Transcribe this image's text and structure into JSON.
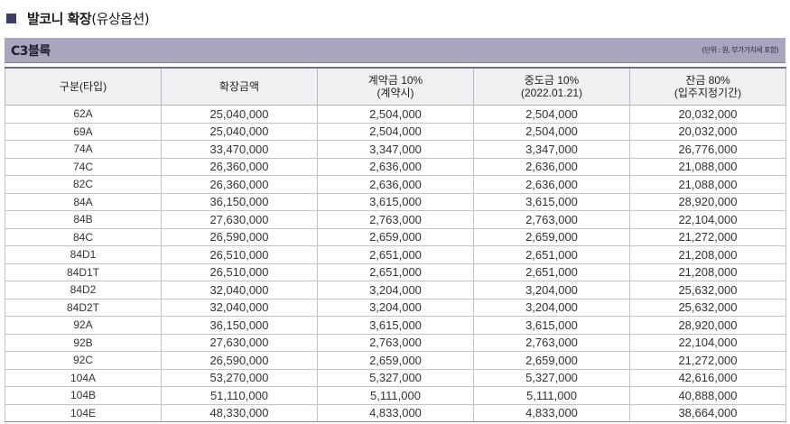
{
  "heading": {
    "main": "발코니 확장",
    "sub": "(유상옵션)"
  },
  "block": {
    "name": "C3블록",
    "unit_note": "(단위 : 원, 부가가치세 포함)"
  },
  "table": {
    "headers": [
      {
        "line1": "구분(타입)",
        "line2": ""
      },
      {
        "line1": "확장금액",
        "line2": ""
      },
      {
        "line1": "계약금 10%",
        "line2": "(계약시)"
      },
      {
        "line1": "중도금 10%",
        "line2": "(2022.01.21)"
      },
      {
        "line1": "잔금 80%",
        "line2": "(입주지정기간)"
      }
    ],
    "rows": [
      [
        "62A",
        "25,040,000",
        "2,504,000",
        "2,504,000",
        "20,032,000"
      ],
      [
        "69A",
        "25,040,000",
        "2,504,000",
        "2,504,000",
        "20,032,000"
      ],
      [
        "74A",
        "33,470,000",
        "3,347,000",
        "3,347,000",
        "26,776,000"
      ],
      [
        "74C",
        "26,360,000",
        "2,636,000",
        "2,636,000",
        "21,088,000"
      ],
      [
        "82C",
        "26,360,000",
        "2,636,000",
        "2,636,000",
        "21,088,000"
      ],
      [
        "84A",
        "36,150,000",
        "3,615,000",
        "3,615,000",
        "28,920,000"
      ],
      [
        "84B",
        "27,630,000",
        "2,763,000",
        "2,763,000",
        "22,104,000"
      ],
      [
        "84C",
        "26,590,000",
        "2,659,000",
        "2,659,000",
        "21,272,000"
      ],
      [
        "84D1",
        "26,510,000",
        "2,651,000",
        "2,651,000",
        "21,208,000"
      ],
      [
        "84D1T",
        "26,510,000",
        "2,651,000",
        "2,651,000",
        "21,208,000"
      ],
      [
        "84D2",
        "32,040,000",
        "3,204,000",
        "3,204,000",
        "25,632,000"
      ],
      [
        "84D2T",
        "32,040,000",
        "3,204,000",
        "3,204,000",
        "25,632,000"
      ],
      [
        "92A",
        "36,150,000",
        "3,615,000",
        "3,615,000",
        "28,920,000"
      ],
      [
        "92B",
        "27,630,000",
        "2,763,000",
        "2,763,000",
        "22,104,000"
      ],
      [
        "92C",
        "26,590,000",
        "2,659,000",
        "2,659,000",
        "21,272,000"
      ],
      [
        "104A",
        "53,270,000",
        "5,327,000",
        "5,327,000",
        "42,616,000"
      ],
      [
        "104B",
        "51,110,000",
        "5,111,000",
        "5,111,000",
        "40,888,000"
      ],
      [
        "104E",
        "48,330,000",
        "4,833,000",
        "4,833,000",
        "38,664,000"
      ]
    ]
  },
  "colors": {
    "accent": "#3c3d6e",
    "block_bar": "#a7a6bd",
    "header_bg": "#f0f0f3"
  }
}
